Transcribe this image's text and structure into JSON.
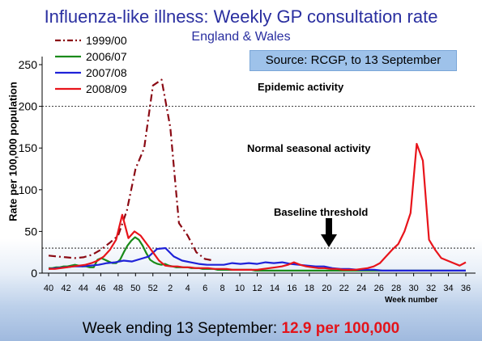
{
  "title": "Influenza-like illness: Weekly GP consultation rate",
  "subtitle": "England & Wales",
  "source": "Source: RCGP, to 13 September",
  "footer": {
    "prefix": "Week ending 13 September: ",
    "highlight": "12.9 per 100,000"
  },
  "annotations": {
    "epidemic": "Epidemic activity",
    "normal": "Normal seasonal activity",
    "baseline": "Baseline threshold"
  },
  "chart_data": {
    "type": "line",
    "ylabel": "Rate per 100,000 population",
    "xlabel": "Week number",
    "ylim": [
      0,
      250
    ],
    "yticks": [
      0,
      50,
      100,
      150,
      200,
      250
    ],
    "x_tick_labels": [
      "40",
      "42",
      "44",
      "46",
      "48",
      "50",
      "52",
      "2",
      "4",
      "6",
      "8",
      "10",
      "12",
      "14",
      "16",
      "18",
      "20",
      "22",
      "24",
      "26",
      "28",
      "30",
      "32",
      "34",
      "36"
    ],
    "thresholds": [
      {
        "name": "Epidemic activity",
        "value": 200
      },
      {
        "name": "Baseline threshold",
        "value": 30
      }
    ],
    "colors": {
      "1999/00": "#8b0a14",
      "2006/07": "#1a8a1a",
      "2007/08": "#1f22d8",
      "2008/09": "#e8141b"
    },
    "series": [
      {
        "name": "1999/00",
        "style": "dash-dot",
        "values": [
          21,
          20,
          19,
          18,
          19,
          22,
          28,
          36,
          45,
          75,
          125,
          150,
          225,
          232,
          175,
          60,
          45,
          25,
          17,
          15
        ]
      },
      {
        "name": "2006/07",
        "style": "solid",
        "values": [
          6,
          6,
          7,
          7,
          8,
          8,
          9,
          10,
          9,
          8,
          8,
          7,
          7,
          16,
          18,
          16,
          14,
          12,
          12,
          16,
          25,
          33,
          39,
          43,
          40,
          33,
          24,
          16,
          13,
          11,
          10,
          11,
          9,
          8,
          7,
          7,
          7,
          7,
          6,
          6,
          6,
          5,
          5,
          5,
          5,
          4,
          4,
          4,
          4,
          4,
          4,
          4,
          4,
          4,
          4,
          3,
          3,
          3,
          3,
          3,
          3,
          3,
          3,
          3,
          3,
          3,
          3,
          3,
          3,
          3,
          3,
          3,
          3,
          3,
          3,
          3,
          3,
          3,
          3,
          3,
          3,
          3,
          3,
          3,
          3,
          3,
          3,
          3,
          3,
          3,
          3,
          3,
          3,
          3,
          3,
          3,
          3,
          3,
          3,
          3,
          3,
          3,
          3,
          3,
          3,
          3,
          3,
          3,
          3,
          3,
          3,
          3
        ]
      },
      {
        "name": "2007/08",
        "style": "solid",
        "values": [
          5,
          6,
          7,
          8,
          8,
          9,
          10,
          12,
          13,
          15,
          14,
          17,
          20,
          29,
          30,
          20,
          15,
          13,
          11,
          10,
          10,
          10,
          12,
          11,
          12,
          11,
          13,
          12,
          13,
          11,
          10,
          9,
          8,
          8,
          6,
          5,
          5,
          4,
          4,
          4,
          3,
          3,
          3,
          3,
          3,
          3,
          3,
          3,
          3,
          3,
          3
        ]
      },
      {
        "name": "2008/09",
        "style": "solid",
        "values": [
          5,
          5,
          6,
          7,
          8,
          9,
          10,
          12,
          15,
          20,
          28,
          40,
          70,
          42,
          50,
          45,
          35,
          25,
          15,
          9,
          8,
          8,
          7,
          7,
          6,
          6,
          6,
          5,
          5,
          5,
          4,
          4,
          4,
          4,
          4,
          5,
          6,
          7,
          8,
          10,
          13,
          10,
          8,
          7,
          6,
          6,
          5,
          5,
          4,
          4,
          4,
          5,
          6,
          8,
          12,
          20,
          28,
          35,
          50,
          72,
          155,
          135,
          40,
          28,
          18,
          15,
          12,
          9,
          13
        ]
      }
    ]
  }
}
